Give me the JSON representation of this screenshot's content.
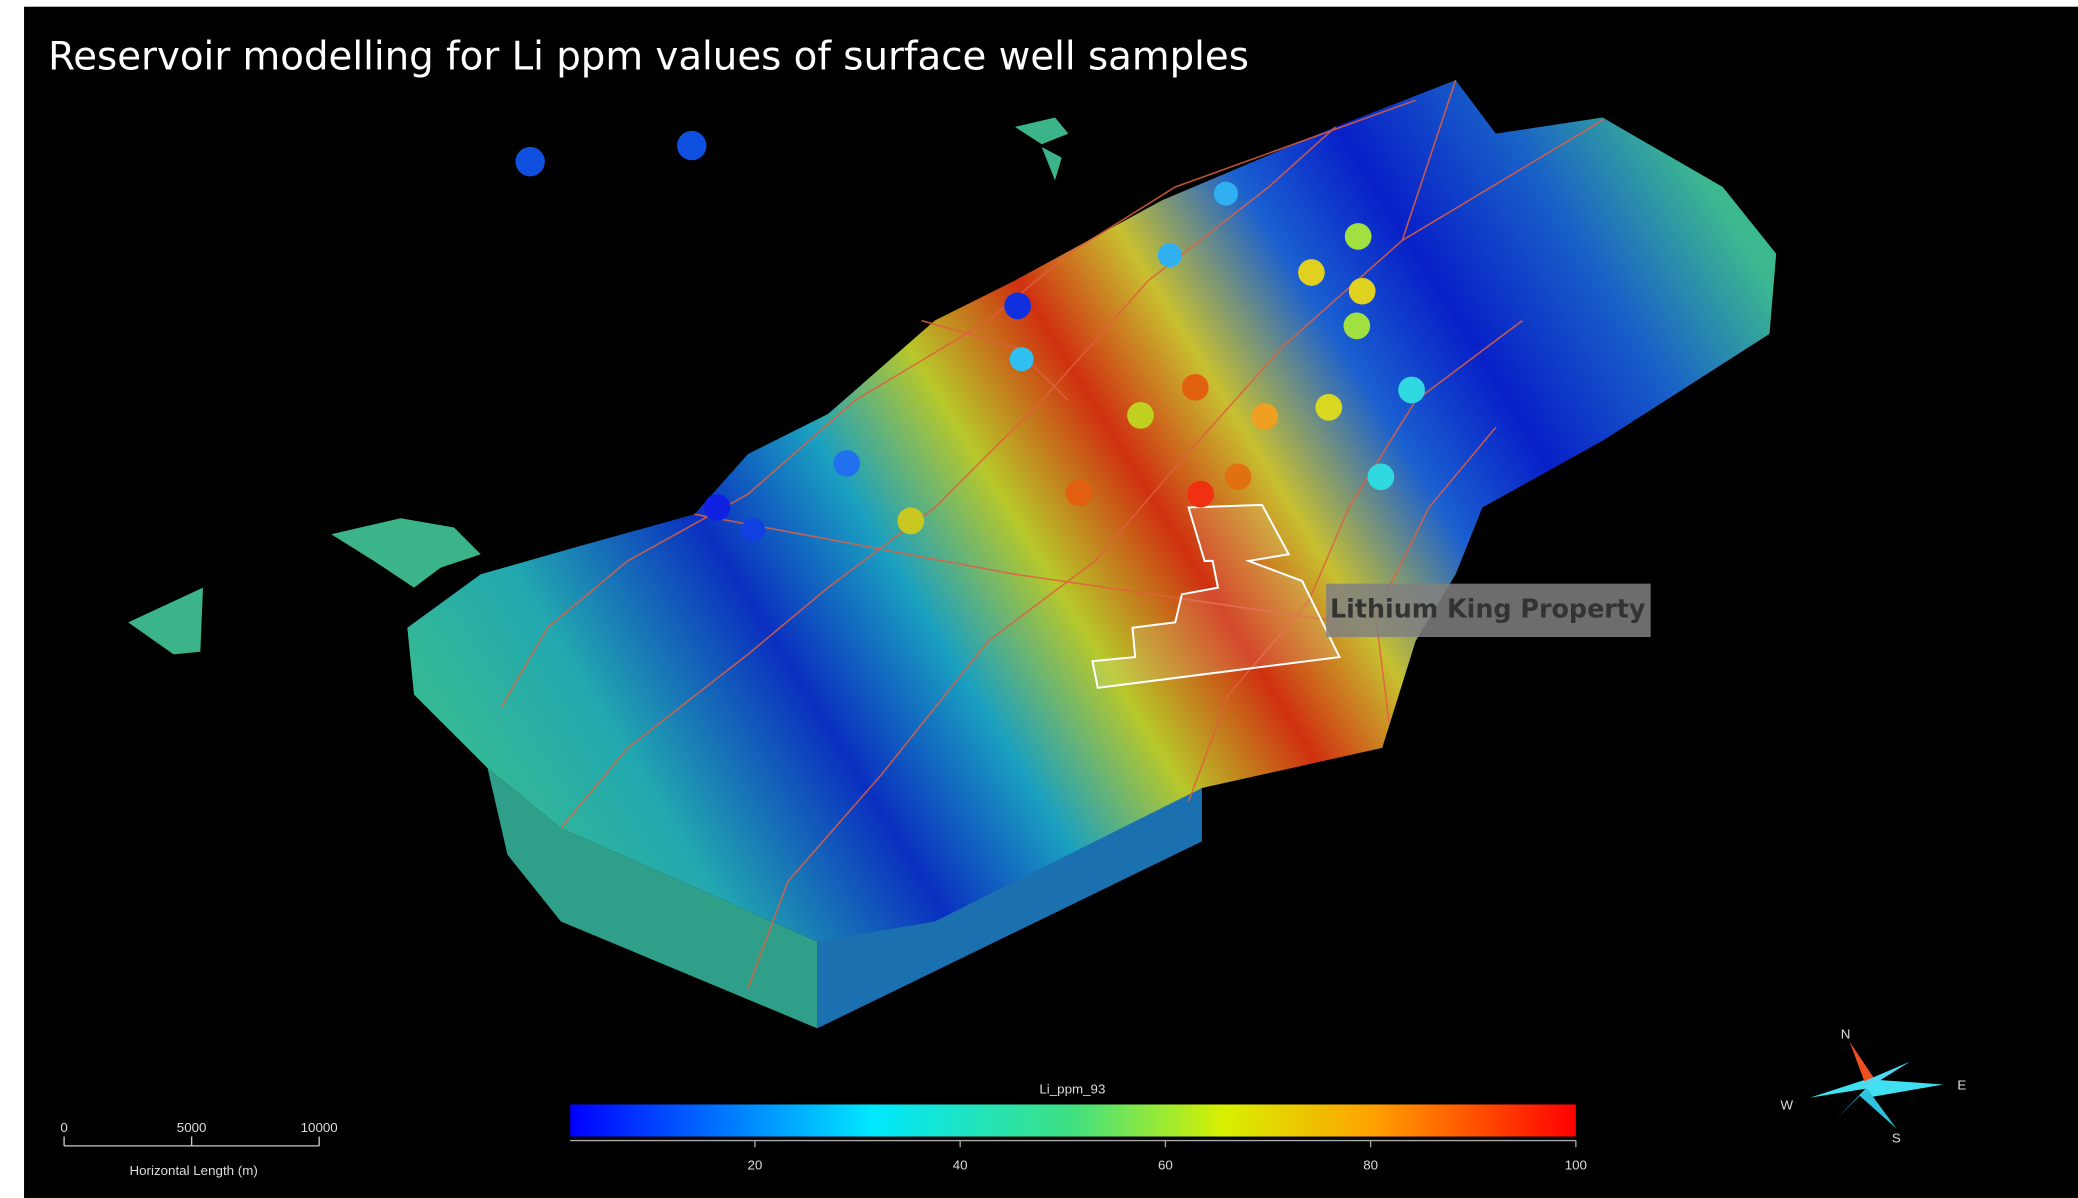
{
  "title": "Reservoir modelling for Li ppm values of surface well samples",
  "annotation": {
    "label": "Lithium King Property"
  },
  "colorbar": {
    "title": "Li_ppm_93",
    "range": [
      2,
      100
    ],
    "ticks": [
      20,
      40,
      60,
      80,
      100
    ]
  },
  "scale_bar": {
    "label": "Horizontal Length (m)",
    "range": [
      0,
      10000
    ],
    "ticks": [
      0,
      5000,
      10000
    ]
  },
  "compass": {
    "n": "N",
    "e": "E",
    "s": "S",
    "w": "W"
  }
}
